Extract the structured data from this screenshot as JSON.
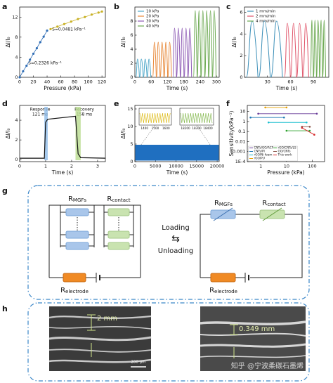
{
  "chart_data": [
    {
      "label": "a",
      "type": "line",
      "markers": true,
      "x_label": "Pressure (kPa)",
      "y_label": "ΔI/I₀",
      "xlim": [
        0,
        125
      ],
      "xticks": [
        0,
        20,
        40,
        60,
        80,
        100,
        120
      ],
      "ylim": [
        0,
        14
      ],
      "yticks": [
        0,
        4,
        8,
        12
      ],
      "series": [
        {
          "color": "#2f6db5",
          "x": [
            0,
            5,
            10,
            15,
            20,
            25,
            30,
            35,
            40
          ],
          "values": [
            0,
            1.2,
            2.3,
            3.5,
            4.7,
            5.8,
            7,
            8.1,
            9.3
          ]
        },
        {
          "color": "#c9b227",
          "x": [
            45,
            55,
            65,
            75,
            85,
            95,
            105,
            115,
            120
          ],
          "values": [
            9.6,
            10.1,
            10.6,
            11.1,
            11.6,
            12,
            12.5,
            12.9,
            13.1
          ]
        }
      ],
      "annotations": [
        "S=0.2326 kPa⁻¹",
        "S=0.0481 kPa⁻¹"
      ]
    },
    {
      "label": "b",
      "type": "peaks",
      "x_label": "Time (s)",
      "y_label": "ΔI/I₀",
      "legend": "upper left",
      "xlim": [
        0,
        310
      ],
      "xticks": [
        0,
        60,
        120,
        180,
        240,
        300
      ],
      "ylim": [
        0,
        10
      ],
      "yticks": [
        0,
        2,
        4,
        6,
        8
      ],
      "series": [
        {
          "name": "10 kPa",
          "color": "#4fa8c9",
          "x": [
            10,
            24,
            38,
            52
          ],
          "values": [
            2.6,
            2.6,
            2.6,
            2.6
          ]
        },
        {
          "name": "20 kPa",
          "color": "#e8893a",
          "x": [
            72,
            86,
            100,
            114,
            128
          ],
          "values": [
            5,
            5,
            5,
            5,
            5
          ]
        },
        {
          "name": "30 kPa",
          "color": "#8e5bb5",
          "x": [
            146,
            160,
            174,
            188,
            202
          ],
          "values": [
            7,
            7,
            7,
            7,
            7
          ]
        },
        {
          "name": "40 kPa",
          "color": "#6aa84f",
          "x": [
            222,
            236,
            250,
            264,
            278,
            292
          ],
          "values": [
            9.5,
            9.5,
            9.5,
            9.5,
            9.5,
            9.5
          ]
        }
      ]
    },
    {
      "label": "c",
      "type": "peaks",
      "x_label": "Time (s)",
      "y_label": "ΔI/I₀",
      "legend": "upper left",
      "xlim": [
        0,
        110
      ],
      "xticks": [
        30,
        60,
        90
      ],
      "ylim": [
        0,
        6.5
      ],
      "yticks": [
        0,
        2,
        4,
        6
      ],
      "series": [
        {
          "name": "1 mm/min",
          "color": "#3c8fb8",
          "x": [
            10,
            26,
            42
          ],
          "values": [
            5.2,
            5.2,
            5.2
          ]
        },
        {
          "name": "2 mm/min",
          "color": "#e0556a",
          "x": [
            56,
            64,
            72,
            80
          ],
          "values": [
            5,
            5,
            5,
            5
          ]
        },
        {
          "name": "4 mm/min",
          "color": "#6aa84f",
          "x": [
            88,
            92,
            96,
            100,
            104
          ],
          "values": [
            5.3,
            5.3,
            5.3,
            5.3,
            5.3
          ]
        }
      ]
    },
    {
      "label": "d",
      "type": "line",
      "markers": false,
      "x_label": "Time (s)",
      "y_label": "ΔI/I₀",
      "xlim": [
        0,
        3.3
      ],
      "xticks": [
        0,
        1,
        2,
        3
      ],
      "ylim": [
        -0.2,
        5.5
      ],
      "yticks": [
        0,
        2,
        4
      ],
      "series": [
        {
          "color": "#111111",
          "x": [
            0,
            0.95,
            1.0,
            1.08,
            2.15,
            2.25,
            2.35,
            3.3
          ],
          "values": [
            0.15,
            0.15,
            3.8,
            4.1,
            4.4,
            0.6,
            0.2,
            0.15
          ]
        }
      ],
      "annotations": [
        "Response",
        "121 ms",
        "Recovery",
        "158 ms"
      ]
    },
    {
      "label": "e",
      "type": "band",
      "x_label": "Time (s)",
      "y_label": "ΔI/I₀",
      "color": "#1f6fc0",
      "xlim": [
        0,
        20500
      ],
      "xticks": [
        0,
        5000,
        10000,
        15000,
        20000
      ],
      "ylim": [
        0,
        16
      ],
      "yticks": [
        0,
        5,
        10,
        15
      ],
      "values": [
        0.3,
        4.8
      ],
      "insets": [
        {
          "xticks": [
            1400,
            1500,
            1600
          ]
        },
        {
          "xticks": [
            18200,
            18300,
            18400
          ]
        }
      ]
    },
    {
      "label": "f",
      "type": "range",
      "xscale": "log",
      "yscale": "log",
      "x_label": "Pressure (kPa)",
      "y_label": "Sensitivity(kPa⁻¹)",
      "legend": "lower left",
      "xlim": [
        0.3,
        300
      ],
      "xticks": [
        1,
        10,
        100
      ],
      "ylim": [
        0.0001,
        40
      ],
      "yticks": [
        {
          "value": 0.0001,
          "label": "1E-4"
        },
        0.001,
        0.01,
        0.1,
        1,
        10
      ],
      "series": [
        {
          "name": "CNTs/GO/ACF",
          "color": "#6a3d9a",
          "x": [
            0.8,
            150
          ],
          "values": [
            6,
            6
          ]
        },
        {
          "name": "CNTs/PI",
          "color": "#1f77b4",
          "x": [
            0.4,
            8
          ],
          "values": [
            2.5,
            2.5
          ]
        },
        {
          "name": "rGO/Ni foam",
          "color": "#17becf",
          "x": [
            2,
            60
          ],
          "values": [
            0.8,
            0.8
          ]
        },
        {
          "name": "rGO/PU",
          "color": "#e6a000",
          "x": [
            1.5,
            10
          ],
          "values": [
            25,
            25
          ]
        },
        {
          "name": "rGO/CNTs/LS",
          "color": "#2ca02c",
          "x": [
            10,
            80
          ],
          "values": [
            0.12,
            0.12
          ]
        },
        {
          "name": "GO/CNTs",
          "color": "#8c564b",
          "x": [
            40,
            80
          ],
          "values": [
            0.3,
            0.3
          ]
        },
        {
          "name": "This work",
          "color": "#d62728",
          "x": [
            40,
            120
          ],
          "values": [
            0.2326,
            0.0481
          ]
        }
      ]
    }
  ],
  "diagram": {
    "label": "g",
    "r_mgfs": {
      "main": "R",
      "sub": "MGFs"
    },
    "r_contact": {
      "main": "R",
      "sub": "contact"
    },
    "r_electrode": {
      "main": "R",
      "sub": "electrode"
    },
    "loading": "Loading",
    "arrow": "⇆",
    "unloading": "Unloading"
  },
  "images": {
    "label": "h",
    "scale_left": "2 mm",
    "scale_right": "0.349 mm",
    "scale_bar": "200 μm",
    "watermark": "知乎 @宁波柔碳石墨烯"
  }
}
